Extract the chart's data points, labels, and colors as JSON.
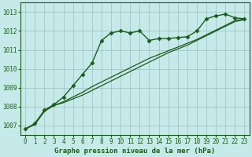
{
  "title": "Graphe pression niveau de la mer (hPa)",
  "bg_color": "#c6e9e9",
  "grid_color": "#9bbfbf",
  "line_color": "#1a5c1a",
  "xlim": [
    -0.5,
    23.5
  ],
  "ylim": [
    1006.5,
    1013.5
  ],
  "yticks": [
    1007,
    1008,
    1009,
    1010,
    1011,
    1012,
    1013
  ],
  "xticks": [
    0,
    1,
    2,
    3,
    4,
    5,
    6,
    7,
    8,
    9,
    10,
    11,
    12,
    13,
    14,
    15,
    16,
    17,
    18,
    19,
    20,
    21,
    22,
    23
  ],
  "series": [
    {
      "data": [
        1006.8,
        1007.1,
        1007.8,
        1008.1,
        1008.5,
        1009.1,
        1009.7,
        1010.3,
        1011.5,
        1011.9,
        1012.0,
        1011.9,
        1012.0,
        1011.5,
        1011.6,
        1011.6,
        1011.65,
        1011.7,
        1012.0,
        1012.65,
        1012.8,
        1012.9,
        1012.7,
        1012.65
      ],
      "marker": true,
      "lw": 1.0
    },
    {
      "data": [
        1006.8,
        1007.05,
        1007.75,
        1008.05,
        1008.2,
        1008.4,
        1008.6,
        1008.85,
        1009.1,
        1009.35,
        1009.6,
        1009.85,
        1010.1,
        1010.35,
        1010.6,
        1010.85,
        1011.05,
        1011.25,
        1011.5,
        1011.75,
        1012.0,
        1012.25,
        1012.5,
        1012.6
      ],
      "marker": false,
      "lw": 0.9
    },
    {
      "data": [
        1006.8,
        1007.05,
        1007.75,
        1008.05,
        1008.25,
        1008.5,
        1008.75,
        1009.05,
        1009.3,
        1009.55,
        1009.8,
        1010.05,
        1010.3,
        1010.55,
        1010.75,
        1010.95,
        1011.15,
        1011.35,
        1011.55,
        1011.8,
        1012.05,
        1012.3,
        1012.55,
        1012.65
      ],
      "marker": false,
      "lw": 0.9
    }
  ],
  "marker_style": "D",
  "marker_size": 2.5,
  "tick_fontsize": 5.5,
  "xlabel_fontsize": 6.5
}
